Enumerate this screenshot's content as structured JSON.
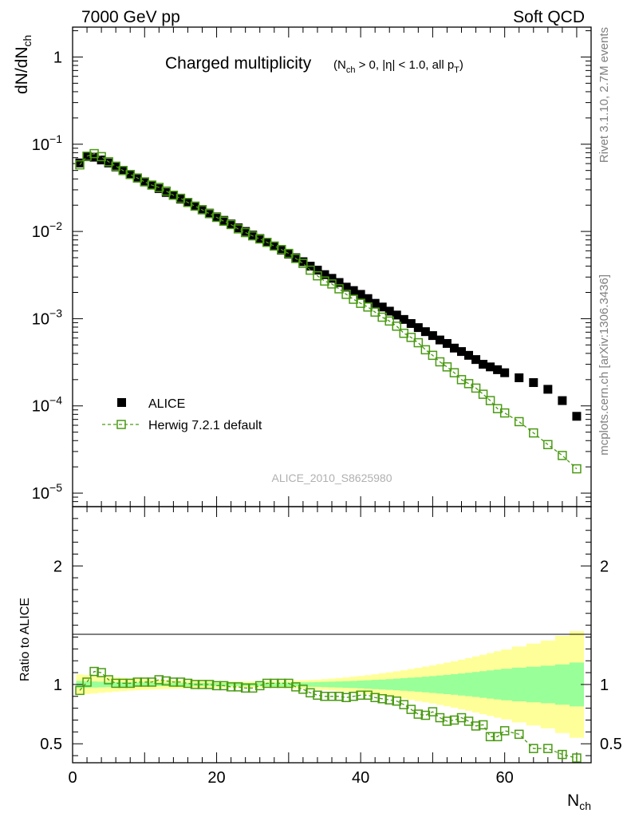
{
  "header": {
    "left": "7000 GeV pp",
    "right": "Soft QCD"
  },
  "side_labels": {
    "rivet": "Rivet 3.1.10,  2.7M events",
    "mcplots": "mcplots.cern.ch [arXiv:1306.3436]"
  },
  "chart_data": [
    {
      "type": "scatter",
      "panel": "main",
      "title_main": "Charged multiplicity",
      "title_cuts": "(N_ch > 0, |η| < 1.0, all p_T)",
      "ylabel": "dN/dN_ch",
      "yscale": "log",
      "ylim": [
        7e-06,
        2.2
      ],
      "xlim": [
        0,
        72
      ],
      "y_ticks": [
        {
          "value": 1,
          "base": "1",
          "exp": ""
        },
        {
          "value": 0.1,
          "base": "10",
          "exp": "−1"
        },
        {
          "value": 0.01,
          "base": "10",
          "exp": "−2"
        },
        {
          "value": 0.001,
          "base": "10",
          "exp": "−3"
        },
        {
          "value": 0.0001,
          "base": "10",
          "exp": "−4"
        },
        {
          "value": 1e-05,
          "base": "10",
          "exp": "−5"
        }
      ],
      "legend": [
        {
          "label": "ALICE",
          "marker": "filled-square",
          "color": "#000000"
        },
        {
          "label": "Herwig 7.2.1 default",
          "marker": "open-square-dashed",
          "color": "#4a9a12"
        }
      ],
      "watermark": "ALICE_2010_S8625980",
      "series": [
        {
          "name": "ALICE",
          "x": [
            1,
            2,
            3,
            4,
            5,
            6,
            7,
            8,
            9,
            10,
            11,
            12,
            13,
            14,
            15,
            16,
            17,
            18,
            19,
            20,
            21,
            22,
            23,
            24,
            25,
            26,
            27,
            28,
            29,
            30,
            31,
            32,
            33,
            34,
            35,
            36,
            37,
            38,
            39,
            40,
            41,
            42,
            43,
            44,
            45,
            46,
            47,
            48,
            49,
            50,
            51,
            52,
            53,
            54,
            55,
            56,
            57,
            58,
            59,
            60,
            62,
            64,
            66,
            68,
            70
          ],
          "y": [
            0.061,
            0.072,
            0.071,
            0.066,
            0.061,
            0.055,
            0.05,
            0.045,
            0.041,
            0.037,
            0.034,
            0.031,
            0.028,
            0.026,
            0.0235,
            0.0215,
            0.0195,
            0.0178,
            0.0162,
            0.0147,
            0.0134,
            0.0122,
            0.011,
            0.01,
            0.0091,
            0.0083,
            0.0075,
            0.0068,
            0.0061,
            0.0055,
            0.005,
            0.0045,
            0.004,
            0.0036,
            0.0032,
            0.0029,
            0.0026,
            0.0023,
            0.0021,
            0.0019,
            0.0017,
            0.0015,
            0.00136,
            0.00122,
            0.0011,
            0.00098,
            0.00088,
            0.00079,
            0.00071,
            0.00064,
            0.00057,
            0.00052,
            0.00046,
            0.00042,
            0.00038,
            0.00034,
            0.0003,
            0.00028,
            0.00026,
            0.00024,
            0.00021,
            0.000185,
            0.000155,
            0.000115,
            7.6e-05
          ]
        },
        {
          "name": "Herwig 7.2.1 default",
          "x": [
            1,
            2,
            3,
            4,
            5,
            6,
            7,
            8,
            9,
            10,
            11,
            12,
            13,
            14,
            15,
            16,
            17,
            18,
            19,
            20,
            21,
            22,
            23,
            24,
            25,
            26,
            27,
            28,
            29,
            30,
            31,
            32,
            33,
            34,
            35,
            36,
            37,
            38,
            39,
            40,
            41,
            42,
            43,
            44,
            45,
            46,
            47,
            48,
            49,
            50,
            51,
            52,
            53,
            54,
            55,
            56,
            57,
            58,
            59,
            60,
            62,
            64,
            66,
            68,
            70
          ],
          "y": [
            0.058,
            0.073,
            0.078,
            0.072,
            0.063,
            0.056,
            0.05,
            0.045,
            0.041,
            0.037,
            0.034,
            0.032,
            0.029,
            0.026,
            0.024,
            0.0215,
            0.0195,
            0.0177,
            0.016,
            0.0145,
            0.0131,
            0.012,
            0.0107,
            0.0097,
            0.0089,
            0.0082,
            0.0075,
            0.0068,
            0.0062,
            0.0056,
            0.0049,
            0.0043,
            0.0036,
            0.0031,
            0.0027,
            0.0025,
            0.0022,
            0.0019,
            0.00167,
            0.0015,
            0.00136,
            0.00119,
            0.00104,
            0.00094,
            0.00082,
            0.00068,
            0.00061,
            0.00053,
            0.00044,
            0.00038,
            0.00032,
            0.00028,
            0.00024,
            0.0002,
            0.00018,
            0.00016,
            0.000136,
            0.000115,
            9.3e-05,
            8.3e-05,
            6.6e-05,
            4.9e-05,
            3.6e-05,
            2.7e-05,
            1.9e-05
          ]
        }
      ]
    },
    {
      "type": "scatter",
      "panel": "ratio",
      "ylabel": "Ratio to ALICE",
      "xlabel": "N_ch",
      "ylim": [
        0.34,
        2.5
      ],
      "xlim": [
        0,
        72
      ],
      "x_ticks": [
        0,
        20,
        40,
        60
      ],
      "y_ticks": [
        {
          "value": 0.5,
          "label": "0.5"
        },
        {
          "value": 1,
          "label": "1"
        },
        {
          "value": 2,
          "label": "2"
        }
      ],
      "bands": {
        "x_edges": [
          0.5,
          1.5,
          2.5,
          3.5,
          4.5,
          5.5,
          6.5,
          7.5,
          8.5,
          9.5,
          10.5,
          11.5,
          12.5,
          13.5,
          14.5,
          15.5,
          16.5,
          17.5,
          18.5,
          19.5,
          20.5,
          21.5,
          22.5,
          23.5,
          24.5,
          25.5,
          26.5,
          27.5,
          28.5,
          29.5,
          30.5,
          31.5,
          32.5,
          33.5,
          34.5,
          35.5,
          36.5,
          37.5,
          38.5,
          39.5,
          40.5,
          41.5,
          42.5,
          43.5,
          44.5,
          45.5,
          46.5,
          47.5,
          48.5,
          49.5,
          50.5,
          51.5,
          52.5,
          53.5,
          54.5,
          55.5,
          56.5,
          57.5,
          58.5,
          59.5,
          61,
          63,
          65,
          67,
          69,
          71
        ],
        "inner_halfwidth": [
          0.03,
          0.028,
          0.026,
          0.024,
          0.022,
          0.02,
          0.019,
          0.018,
          0.017,
          0.016,
          0.015,
          0.014,
          0.013,
          0.012,
          0.012,
          0.012,
          0.012,
          0.012,
          0.012,
          0.012,
          0.012,
          0.012,
          0.013,
          0.013,
          0.013,
          0.014,
          0.014,
          0.015,
          0.015,
          0.016,
          0.017,
          0.018,
          0.019,
          0.02,
          0.022,
          0.024,
          0.026,
          0.028,
          0.03,
          0.033,
          0.036,
          0.039,
          0.042,
          0.045,
          0.049,
          0.053,
          0.057,
          0.061,
          0.066,
          0.071,
          0.076,
          0.081,
          0.087,
          0.093,
          0.099,
          0.105,
          0.112,
          0.119,
          0.126,
          0.133,
          0.142,
          0.15,
          0.158,
          0.17,
          0.185
        ],
        "outer_halfwidth": [
          0.085,
          0.08,
          0.075,
          0.07,
          0.065,
          0.06,
          0.056,
          0.052,
          0.048,
          0.045,
          0.042,
          0.04,
          0.038,
          0.036,
          0.034,
          0.032,
          0.03,
          0.029,
          0.028,
          0.027,
          0.026,
          0.026,
          0.026,
          0.026,
          0.026,
          0.027,
          0.028,
          0.029,
          0.03,
          0.032,
          0.034,
          0.036,
          0.039,
          0.042,
          0.046,
          0.05,
          0.055,
          0.06,
          0.066,
          0.072,
          0.079,
          0.086,
          0.094,
          0.102,
          0.111,
          0.12,
          0.13,
          0.14,
          0.15,
          0.161,
          0.172,
          0.184,
          0.196,
          0.209,
          0.222,
          0.236,
          0.25,
          0.265,
          0.28,
          0.295,
          0.32,
          0.345,
          0.37,
          0.41,
          0.45
        ]
      },
      "series": [
        {
          "name": "Herwig 7.2.1 default / ALICE",
          "x": [
            1,
            2,
            3,
            4,
            5,
            6,
            7,
            8,
            9,
            10,
            11,
            12,
            13,
            14,
            15,
            16,
            17,
            18,
            19,
            20,
            21,
            22,
            23,
            24,
            25,
            26,
            27,
            28,
            29,
            30,
            31,
            32,
            33,
            34,
            35,
            36,
            37,
            38,
            39,
            40,
            41,
            42,
            43,
            44,
            45,
            46,
            47,
            48,
            49,
            50,
            51,
            52,
            53,
            54,
            55,
            56,
            57,
            58,
            59,
            60,
            62,
            64,
            66,
            68,
            70
          ],
          "y": [
            0.95,
            1.02,
            1.11,
            1.1,
            1.04,
            1.01,
            1.01,
            1.01,
            1.02,
            1.02,
            1.02,
            1.04,
            1.03,
            1.02,
            1.02,
            1.01,
            1.0,
            1.0,
            1.0,
            0.99,
            0.99,
            0.98,
            0.98,
            0.97,
            0.97,
            0.99,
            1.01,
            1.01,
            1.01,
            1.01,
            0.98,
            0.96,
            0.93,
            0.91,
            0.9,
            0.9,
            0.9,
            0.89,
            0.9,
            0.91,
            0.91,
            0.89,
            0.88,
            0.87,
            0.86,
            0.83,
            0.79,
            0.75,
            0.74,
            0.77,
            0.72,
            0.69,
            0.7,
            0.72,
            0.69,
            0.65,
            0.66,
            0.56,
            0.56,
            0.61,
            0.58,
            0.46,
            0.46,
            0.41,
            0.38
          ],
          "err": [
            0.01,
            0.01,
            0.01,
            0.01,
            0.01,
            0.01,
            0.01,
            0.01,
            0.01,
            0.01,
            0.01,
            0.01,
            0.01,
            0.01,
            0.01,
            0.01,
            0.01,
            0.01,
            0.01,
            0.01,
            0.01,
            0.01,
            0.01,
            0.01,
            0.01,
            0.01,
            0.01,
            0.01,
            0.01,
            0.01,
            0.01,
            0.01,
            0.01,
            0.01,
            0.01,
            0.01,
            0.01,
            0.01,
            0.01,
            0.01,
            0.01,
            0.01,
            0.01,
            0.012,
            0.012,
            0.012,
            0.014,
            0.014,
            0.015,
            0.015,
            0.016,
            0.016,
            0.017,
            0.018,
            0.018,
            0.02,
            0.02,
            0.022,
            0.022,
            0.024,
            0.026,
            0.03,
            0.032,
            0.035,
            0.04
          ]
        }
      ]
    }
  ]
}
